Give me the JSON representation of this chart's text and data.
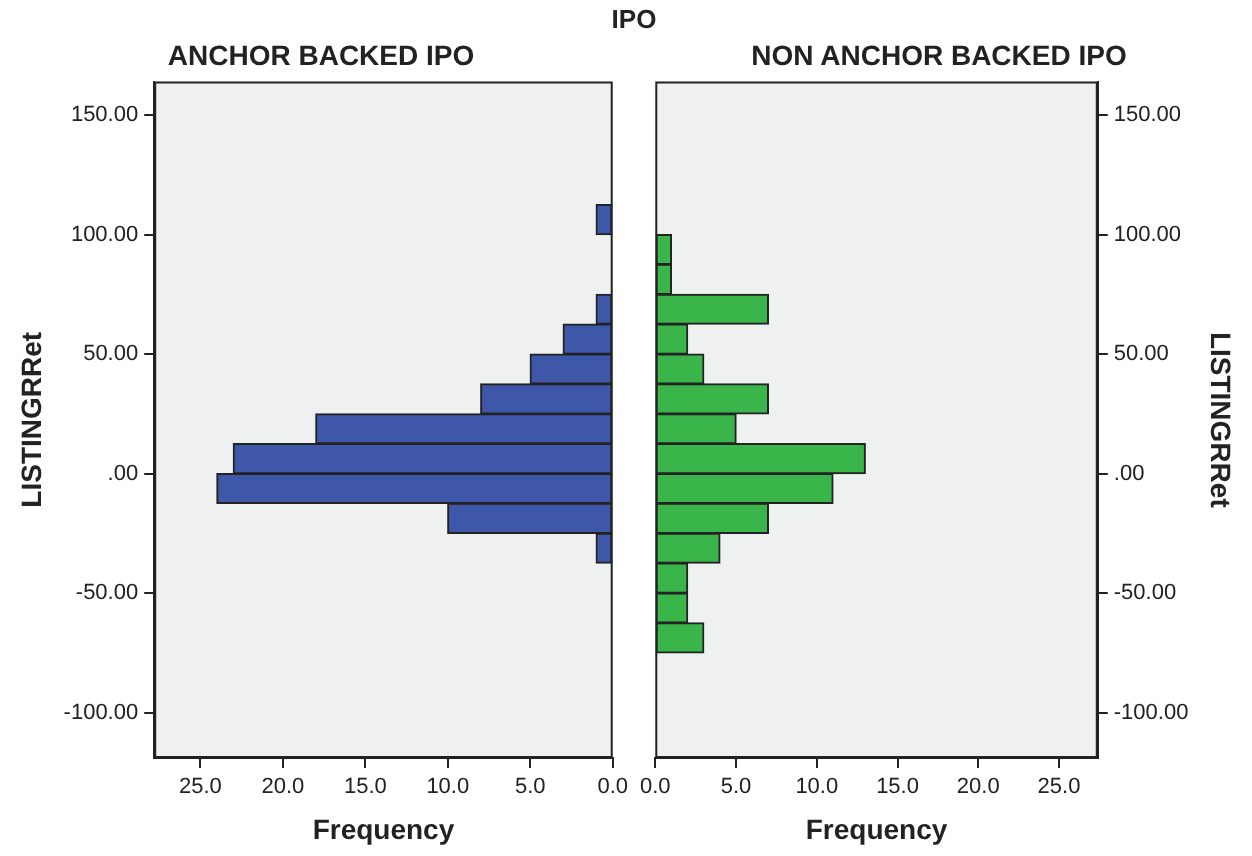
{
  "chart_data": [
    {
      "type": "histogram",
      "orientation": "horizontal",
      "title": "ANCHOR BACKED IPO",
      "annotations": [
        "IPO"
      ],
      "xlabel": "Frequency",
      "ylabel": "LISTINGRRet",
      "bins": [
        -75,
        -62.5,
        -50,
        -37.5,
        -25,
        -12.5,
        0,
        12.5,
        25,
        37.5,
        50,
        62.5,
        75,
        87.5,
        100,
        112.5
      ],
      "values": [
        0,
        0,
        0,
        1,
        10,
        24,
        23,
        18,
        8,
        5,
        3,
        1,
        0,
        0,
        1
      ],
      "color": "#3f57a8",
      "xlim": [
        27.8,
        0
      ],
      "xticks": [
        {
          "value": 25,
          "label": "25.0"
        },
        {
          "value": 20,
          "label": "20.0"
        },
        {
          "value": 15,
          "label": "15.0"
        },
        {
          "value": 10,
          "label": "10.0"
        },
        {
          "value": 5,
          "label": "5.0"
        },
        {
          "value": 0,
          "label": "0.0"
        }
      ],
      "ylim": [
        -119,
        164
      ],
      "yticks": [
        {
          "value": -100,
          "label": "-100.00"
        },
        {
          "value": -50,
          "label": "-50.00"
        },
        {
          "value": 0,
          "label": ".00"
        },
        {
          "value": 50,
          "label": "50.00"
        },
        {
          "value": 100,
          "label": "100.00"
        },
        {
          "value": 150,
          "label": "150.00"
        }
      ]
    },
    {
      "type": "histogram",
      "orientation": "horizontal",
      "title": "NON ANCHOR BACKED IPO",
      "xlabel": "Frequency",
      "ylabel": "LISTINGRRet",
      "bins": [
        -75,
        -62.5,
        -50,
        -37.5,
        -25,
        -12.5,
        0,
        12.5,
        25,
        37.5,
        50,
        62.5,
        75,
        87.5,
        100,
        112.5
      ],
      "values": [
        3,
        2,
        2,
        4,
        7,
        11,
        13,
        5,
        7,
        3,
        2,
        7,
        1,
        1,
        0
      ],
      "color": "#3ab54a",
      "xlim": [
        0,
        27.4
      ],
      "xticks": [
        {
          "value": 0,
          "label": "0.0"
        },
        {
          "value": 5,
          "label": "5.0"
        },
        {
          "value": 10,
          "label": "10.0"
        },
        {
          "value": 15,
          "label": "15.0"
        },
        {
          "value": 20,
          "label": "20.0"
        },
        {
          "value": 25,
          "label": "25.0"
        }
      ],
      "ylim": [
        -119,
        164
      ],
      "yticks": [
        {
          "value": -100,
          "label": "-100.00"
        },
        {
          "value": -50,
          "label": "-50.00"
        },
        {
          "value": 0,
          "label": ".00"
        },
        {
          "value": 50,
          "label": "50.00"
        },
        {
          "value": 100,
          "label": "100.00"
        },
        {
          "value": 150,
          "label": "150.00"
        }
      ]
    }
  ]
}
